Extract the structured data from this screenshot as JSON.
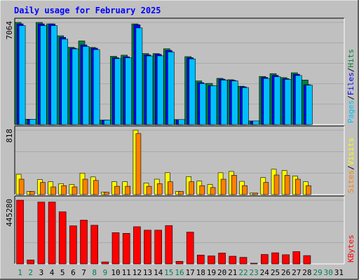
{
  "colors": {
    "background": "#c0c0c0",
    "plot_background": "#c0c0c0",
    "grid": "#a8a8a8",
    "title": "#0000ff",
    "hits": "#008040",
    "files": "#0000ff",
    "pages": "#00c0ff",
    "visits": "#ffff00",
    "sites": "#ff8000",
    "kbytes": "#ff0000",
    "weekday": "#000000",
    "weekend": "#00805c",
    "axis_text": "#000000"
  },
  "chart_data": {
    "type": "bar",
    "title": "Daily usage for February 2025",
    "categories": [
      "1",
      "2",
      "3",
      "4",
      "5",
      "6",
      "7",
      "8",
      "9",
      "10",
      "11",
      "12",
      "13",
      "14",
      "15",
      "16",
      "17",
      "18",
      "19",
      "20",
      "21",
      "22",
      "23",
      "24",
      "25",
      "26",
      "27",
      "28",
      "29",
      "30",
      "31"
    ],
    "weekend_days": [
      "1",
      "2",
      "8",
      "9",
      "15",
      "16",
      "22",
      "23",
      "29",
      "30"
    ],
    "panels": [
      {
        "id": "hits-files-pages",
        "max_label": "7064",
        "ymax": 7064,
        "legend": [
          {
            "text": "Hits",
            "color_key": "hits"
          },
          {
            "text": "Files",
            "color_key": "files"
          },
          {
            "text": "Pages",
            "color_key": "pages"
          }
        ],
        "separator": "/",
        "series": [
          {
            "name": "Hits",
            "color_key": "hits",
            "values": [
              7064,
              370,
              7064,
              6960,
              6140,
              5340,
              5780,
              5330,
              310,
              4720,
              4800,
              6960,
              4910,
              4910,
              5240,
              350,
              4700,
              3020,
              2850,
              3200,
              3100,
              2650,
              250,
              3330,
              3520,
              3250,
              3580,
              3080,
              0,
              0,
              0
            ]
          },
          {
            "name": "Files",
            "color_key": "files",
            "values": [
              6960,
              370,
              6960,
              6960,
              6030,
              5280,
              5510,
              5280,
              310,
              4620,
              4690,
              6900,
              4820,
              4860,
              5130,
              350,
              4620,
              2900,
              2700,
              3140,
              3060,
              2610,
              250,
              3260,
              3400,
              3180,
              3480,
              2760,
              0,
              0,
              0
            ]
          },
          {
            "name": "Pages",
            "color_key": "pages",
            "values": [
              6840,
              370,
              6840,
              6840,
              5910,
              5230,
              5400,
              5180,
              310,
              4560,
              4620,
              6680,
              4740,
              4750,
              5020,
              350,
              4540,
              2840,
              2690,
              3080,
              3020,
              2560,
              250,
              3190,
              3310,
              3130,
              3390,
              2730,
              0,
              0,
              0
            ]
          }
        ]
      },
      {
        "id": "visits-sites",
        "max_label": "818",
        "ymax": 818,
        "legend": [
          {
            "text": "Visits",
            "color_key": "visits"
          },
          {
            "text": "Sites",
            "color_key": "sites"
          }
        ],
        "separator": "/",
        "series": [
          {
            "name": "Visits",
            "color_key": "visits",
            "values": [
              258,
              40,
              190,
              163,
              139,
              130,
              273,
              224,
              30,
              163,
              163,
              818,
              147,
              196,
              277,
              40,
              228,
              172,
              130,
              277,
              294,
              168,
              20,
              216,
              322,
              306,
              236,
              163,
              0,
              0,
              0
            ]
          },
          {
            "name": "Sites",
            "color_key": "sites",
            "values": [
              196,
              40,
              155,
              98,
              114,
              98,
              196,
              180,
              30,
              106,
              106,
              775,
              106,
              139,
              163,
              40,
              163,
              114,
              90,
              196,
              245,
              114,
              20,
              155,
              249,
              245,
              196,
              114,
              0,
              0,
              0
            ]
          }
        ]
      },
      {
        "id": "kbytes",
        "max_label": "445280",
        "ymax": 445280,
        "legend": [
          {
            "text": "KBytes",
            "color_key": "kbytes"
          }
        ],
        "separator": "",
        "series": [
          {
            "name": "KBytes",
            "color_key": "kbytes",
            "values": [
              445280,
              28000,
              432000,
              432000,
              364000,
              266000,
              306000,
              270000,
              14000,
              218000,
              214000,
              260000,
              236000,
              236000,
              268000,
              18000,
              222000,
              62000,
              56000,
              76000,
              54000,
              46000,
              4000,
              66000,
              78000,
              64000,
              86000,
              58000,
              0,
              0,
              0
            ]
          }
        ]
      }
    ]
  }
}
